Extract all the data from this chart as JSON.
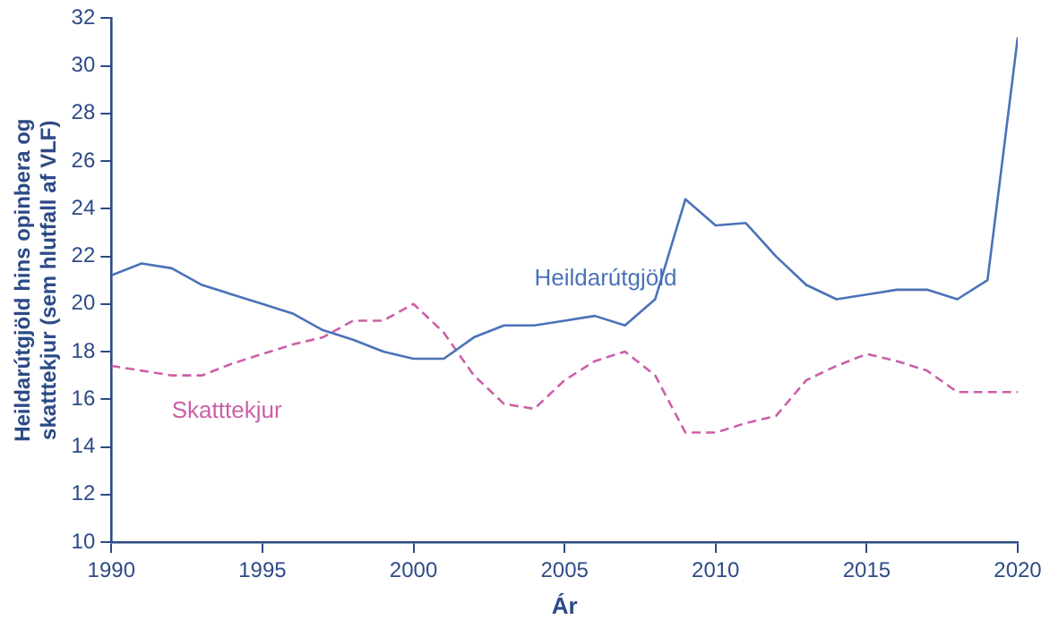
{
  "chart_data": {
    "type": "line",
    "xlabel": "Ár",
    "ylabel": "Heildarútgjöld hins opinbera og skatttekjur (sem hlutfall af VLF)",
    "x": [
      1990,
      1991,
      1992,
      1993,
      1994,
      1995,
      1996,
      1997,
      1998,
      1999,
      2000,
      2001,
      2002,
      2003,
      2004,
      2005,
      2006,
      2007,
      2008,
      2009,
      2010,
      2011,
      2012,
      2013,
      2014,
      2015,
      2016,
      2017,
      2018,
      2019,
      2020
    ],
    "series": [
      {
        "name": "Heildarútgjöld",
        "color": "#4a72b8",
        "line_style": "solid",
        "values": [
          21.2,
          21.7,
          21.5,
          20.8,
          20.4,
          20.0,
          19.6,
          18.9,
          18.5,
          18.0,
          17.7,
          17.7,
          18.6,
          19.1,
          19.1,
          19.3,
          19.5,
          19.1,
          20.2,
          24.4,
          23.3,
          23.4,
          22.0,
          20.8,
          20.2,
          20.4,
          20.6,
          20.6,
          20.2,
          21.0,
          31.2
        ]
      },
      {
        "name": "Skatttekjur",
        "color": "#cc5fa8",
        "line_style": "dashed",
        "values": [
          17.4,
          17.2,
          17.0,
          17.0,
          17.5,
          17.9,
          18.3,
          18.6,
          19.3,
          19.3,
          20.0,
          18.8,
          17.0,
          15.8,
          15.6,
          16.8,
          17.6,
          18.0,
          17.0,
          14.6,
          14.6,
          15.0,
          15.3,
          16.8,
          17.4,
          17.9,
          17.6,
          17.2,
          16.3,
          16.3,
          16.3
        ]
      }
    ],
    "xlim": [
      1990,
      2020
    ],
    "xticks": [
      1990,
      1995,
      2000,
      2005,
      2010,
      2015,
      2020
    ],
    "ylim": [
      10,
      32
    ],
    "yticks": [
      10,
      12,
      14,
      16,
      18,
      20,
      22,
      24,
      26,
      28,
      30,
      32
    ],
    "grid": false,
    "legend": false,
    "marker": "none"
  }
}
